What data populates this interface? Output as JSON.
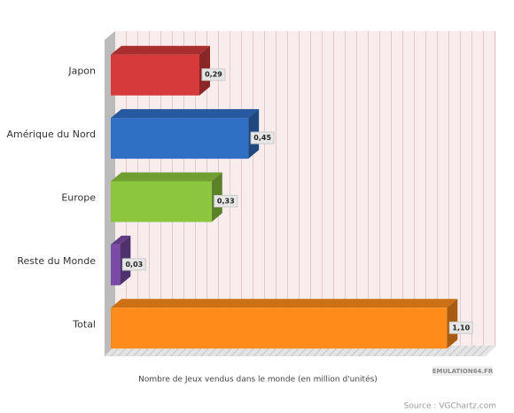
{
  "chart_data": {
    "type": "bar",
    "orientation": "horizontal",
    "categories": [
      "Japon",
      "Amérique du Nord",
      "Europe",
      "Reste du Monde",
      "Total"
    ],
    "values": [
      0.29,
      0.45,
      0.33,
      0.03,
      1.1
    ],
    "value_labels": [
      "0,29",
      "0,45",
      "0,33",
      "0,03",
      "1,10"
    ],
    "colors": [
      "#d63a3a",
      "#2f6fc4",
      "#8cc63f",
      "#7a4ca8",
      "#ff8c1a"
    ],
    "xlim": [
      0,
      1.25
    ],
    "xlabel": "Nombre de Jeux vendus dans le monde (en million d'unités)",
    "watermark": "EMULATION64.FR",
    "source": "Source : VGChartz.com"
  }
}
